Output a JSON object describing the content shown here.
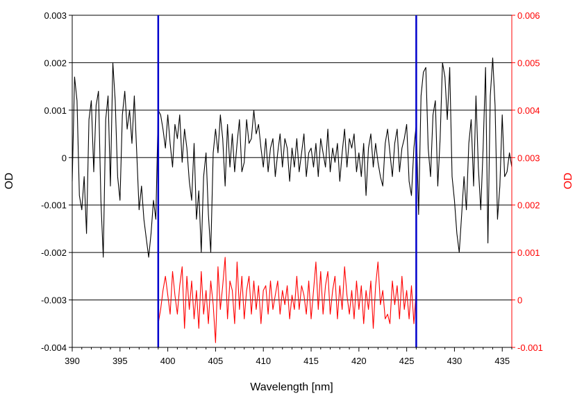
{
  "chart_data": {
    "type": "line",
    "title": "",
    "xlabel": "Wavelength [nm]",
    "ylabel_left": "OD",
    "ylabel_right": "OD",
    "xlim": [
      390,
      436
    ],
    "ylim_left": [
      -0.004,
      0.003
    ],
    "ylim_right": [
      -0.001,
      0.006
    ],
    "x_ticks": [
      390,
      395,
      400,
      405,
      410,
      415,
      420,
      425,
      430,
      435
    ],
    "x_tick_labels": [
      "390",
      "395",
      "400",
      "405",
      "410",
      "415",
      "420",
      "425",
      "430",
      "435"
    ],
    "y_left_ticks": [
      -0.004,
      -0.003,
      -0.002,
      -0.001,
      0,
      0.001,
      0.002,
      0.003
    ],
    "y_left_tick_labels": [
      "-0.004",
      "-0.003",
      "-0.002",
      "-0.001",
      "0",
      "0.001",
      "0.002",
      "0.003"
    ],
    "y_right_ticks": [
      -0.001,
      0,
      0.001,
      0.002,
      0.003,
      0.004,
      0.005,
      0.006
    ],
    "y_right_tick_labels": [
      "-0.001",
      "0",
      "0.001",
      "0.002",
      "0.003",
      "0.004",
      "0.005",
      "0.006"
    ],
    "grid": "horizontal",
    "legend": "none",
    "colors": {
      "black_series": "#000000",
      "red_series": "#ff0000",
      "markers": "#0000cc",
      "right_axis": "#ff0000"
    },
    "vertical_markers": [
      399.0,
      426.0
    ],
    "series": [
      {
        "axis": "left",
        "color": "#000000",
        "x": [
          390.0,
          390.25,
          390.5,
          390.75,
          391.0,
          391.25,
          391.5,
          391.75,
          392.0,
          392.25,
          392.5,
          392.75,
          393.0,
          393.25,
          393.5,
          393.75,
          394.0,
          394.25,
          394.5,
          394.75,
          395.0,
          395.25,
          395.5,
          395.75,
          396.0,
          396.25,
          396.5,
          396.75,
          397.0,
          397.25,
          397.5,
          397.75,
          398.0,
          398.25,
          398.5,
          398.75,
          399.0,
          399.25,
          399.5,
          399.75,
          400.0,
          400.25,
          400.5,
          400.75,
          401.0,
          401.25,
          401.5,
          401.75,
          402.0,
          402.25,
          402.5,
          402.75,
          403.0,
          403.25,
          403.5,
          403.75,
          404.0,
          404.25,
          404.5,
          404.75,
          405.0,
          405.25,
          405.5,
          405.75,
          406.0,
          406.25,
          406.5,
          406.75,
          407.0,
          407.25,
          407.5,
          407.75,
          408.0,
          408.25,
          408.5,
          408.75,
          409.0,
          409.25,
          409.5,
          409.75,
          410.0,
          410.25,
          410.5,
          410.75,
          411.0,
          411.25,
          411.5,
          411.75,
          412.0,
          412.25,
          412.5,
          412.75,
          413.0,
          413.25,
          413.5,
          413.75,
          414.0,
          414.25,
          414.5,
          414.75,
          415.0,
          415.25,
          415.5,
          415.75,
          416.0,
          416.25,
          416.5,
          416.75,
          417.0,
          417.25,
          417.5,
          417.75,
          418.0,
          418.25,
          418.5,
          418.75,
          419.0,
          419.25,
          419.5,
          419.75,
          420.0,
          420.25,
          420.5,
          420.75,
          421.0,
          421.25,
          421.5,
          421.75,
          422.0,
          422.25,
          422.5,
          422.75,
          423.0,
          423.25,
          423.5,
          423.75,
          424.0,
          424.25,
          424.5,
          424.75,
          425.0,
          425.25,
          425.5,
          425.75,
          426.0,
          426.25,
          426.5,
          426.75,
          427.0,
          427.25,
          427.5,
          427.75,
          428.0,
          428.25,
          428.5,
          428.75,
          429.0,
          429.25,
          429.5,
          429.75,
          430.0,
          430.25,
          430.5,
          430.75,
          431.0,
          431.25,
          431.5,
          431.75,
          432.0,
          432.25,
          432.5,
          432.75,
          433.0,
          433.25,
          433.5,
          433.75,
          434.0,
          434.25,
          434.5,
          434.75,
          435.0,
          435.25,
          435.5,
          435.75,
          436.0
        ],
        "y": [
          -0.0005,
          0.0017,
          0.0012,
          -0.0008,
          -0.0011,
          -0.0004,
          -0.0016,
          0.0008,
          0.0012,
          -0.0003,
          0.0011,
          0.0014,
          -0.0009,
          -0.0021,
          0.0008,
          0.0013,
          -0.0006,
          0.002,
          0.0012,
          -0.0004,
          -0.0009,
          0.0009,
          0.0014,
          0.0006,
          0.001,
          0.0003,
          0.0013,
          0.0001,
          -0.0011,
          -0.0006,
          -0.0013,
          -0.0017,
          -0.0021,
          -0.0016,
          -0.0009,
          -0.0013,
          0.001,
          0.0009,
          0.0006,
          0.0002,
          0.0009,
          0.0003,
          -0.0002,
          0.0007,
          0.0004,
          0.0009,
          -0.0001,
          0.0006,
          0.0002,
          -0.0005,
          -0.0009,
          0.0003,
          -0.0013,
          -0.0007,
          -0.002,
          -0.0004,
          0.0001,
          -0.0012,
          -0.002,
          0.0001,
          0.0006,
          0.0001,
          0.0009,
          0.0004,
          -0.0006,
          0.0007,
          -0.0002,
          0.0005,
          -0.0003,
          0.0003,
          0.0008,
          -0.0003,
          -0.0001,
          0.0008,
          0.0003,
          0.0004,
          0.001,
          0.0005,
          0.0007,
          0.0002,
          -0.0002,
          0.0004,
          -0.0003,
          0.0002,
          0.0004,
          -0.0004,
          0.0001,
          0.0005,
          -0.0002,
          0.0004,
          0.0002,
          -0.0005,
          0.0002,
          -0.0002,
          0.0004,
          -0.0003,
          0.0001,
          0.0005,
          -0.0004,
          0.0001,
          0.0002,
          -0.0002,
          0.0003,
          -0.0004,
          0.0004,
          0.0001,
          -0.0002,
          0.0006,
          -0.0003,
          0.0002,
          -0.0001,
          0.0003,
          -0.0005,
          0.0001,
          0.0006,
          -0.0002,
          0.0004,
          0.0002,
          0.0005,
          -0.0003,
          0.0001,
          -0.0004,
          0.0003,
          -0.0008,
          0.0002,
          0.0005,
          -0.0002,
          0.0003,
          -0.0001,
          -0.0004,
          -0.0006,
          0.0003,
          0.0006,
          0.0001,
          -0.0004,
          0.0003,
          0.0006,
          -0.0003,
          0.0002,
          0.0004,
          0.0007,
          -0.0005,
          -0.0008,
          0.0002,
          0.0007,
          -0.0012,
          0.0013,
          0.0018,
          0.0019,
          0.0002,
          -0.0004,
          0.0009,
          0.0012,
          -0.0006,
          0.0004,
          0.002,
          0.0017,
          0.0008,
          0.0019,
          -0.0004,
          -0.0009,
          -0.0016,
          -0.002,
          -0.0012,
          -0.0004,
          -0.0011,
          0.0003,
          0.0008,
          -0.0006,
          0.0013,
          -0.0002,
          -0.0011,
          0.0002,
          0.0019,
          -0.0018,
          0.0013,
          0.0021,
          0.0011,
          -0.0013,
          -0.0006,
          0.0009,
          -0.0004,
          -0.0003,
          0.0001,
          -0.0002
        ]
      },
      {
        "axis": "right",
        "color": "#ff0000",
        "x": [
          399.0,
          399.25,
          399.5,
          399.75,
          400.0,
          400.25,
          400.5,
          400.75,
          401.0,
          401.25,
          401.5,
          401.75,
          402.0,
          402.25,
          402.5,
          402.75,
          403.0,
          403.25,
          403.5,
          403.75,
          404.0,
          404.25,
          404.5,
          404.75,
          405.0,
          405.25,
          405.5,
          405.75,
          406.0,
          406.25,
          406.5,
          406.75,
          407.0,
          407.25,
          407.5,
          407.75,
          408.0,
          408.25,
          408.5,
          408.75,
          409.0,
          409.25,
          409.5,
          409.75,
          410.0,
          410.25,
          410.5,
          410.75,
          411.0,
          411.25,
          411.5,
          411.75,
          412.0,
          412.25,
          412.5,
          412.75,
          413.0,
          413.25,
          413.5,
          413.75,
          414.0,
          414.25,
          414.5,
          414.75,
          415.0,
          415.25,
          415.5,
          415.75,
          416.0,
          416.25,
          416.5,
          416.75,
          417.0,
          417.25,
          417.5,
          417.75,
          418.0,
          418.25,
          418.5,
          418.75,
          419.0,
          419.25,
          419.5,
          419.75,
          420.0,
          420.25,
          420.5,
          420.75,
          421.0,
          421.25,
          421.5,
          421.75,
          422.0,
          422.25,
          422.5,
          422.75,
          423.0,
          423.25,
          423.5,
          423.75,
          424.0,
          424.25,
          424.5,
          424.75,
          425.0,
          425.25,
          425.5,
          425.75,
          426.0
        ],
        "y": [
          -0.0005,
          -0.0002,
          0.0002,
          0.0005,
          0.0001,
          -0.0003,
          0.0006,
          0.0001,
          -0.0003,
          0.0003,
          0.0007,
          -0.0006,
          0.0005,
          -0.0002,
          0.0004,
          -0.0004,
          0.0002,
          -0.0006,
          0.0006,
          -0.0003,
          0.0002,
          -0.0005,
          0.0004,
          -0.0001,
          -0.0009,
          0.0007,
          -0.0002,
          0.0003,
          0.0009,
          -0.0004,
          0.0004,
          0.0002,
          -0.0005,
          0.0008,
          -0.0002,
          0.0005,
          -0.0004,
          0.0002,
          0.0005,
          -0.0003,
          0.0004,
          -0.0002,
          0.0003,
          -0.0005,
          0.0002,
          0.0003,
          -0.0003,
          0.0004,
          -0.0002,
          0.0001,
          0.0004,
          -0.0003,
          0.0002,
          -0.0001,
          0.0003,
          -0.0004,
          0.0001,
          -0.0002,
          0.0005,
          -0.0002,
          0.0003,
          0.0001,
          -0.0003,
          0.0004,
          -0.0004,
          0.0002,
          0.0008,
          -0.0002,
          0.0006,
          -0.0003,
          0.0003,
          0.0006,
          -0.0003,
          0.0002,
          0.0005,
          -0.0004,
          0.0003,
          -0.0002,
          0.0007,
          0.0001,
          -0.0003,
          0.0002,
          -0.0004,
          0.0004,
          -0.0002,
          0.0003,
          -0.0005,
          0.0002,
          -0.0002,
          0.0004,
          -0.0006,
          0.0003,
          0.0008,
          -0.0001,
          0.0002,
          -0.0004,
          -0.0003,
          -0.0005,
          0.0004,
          -0.0001,
          0.0003,
          -0.0004,
          0.0005,
          -0.0002,
          0.0002,
          -0.0004,
          0.0003,
          -0.0005,
          0.0002
        ]
      }
    ]
  }
}
